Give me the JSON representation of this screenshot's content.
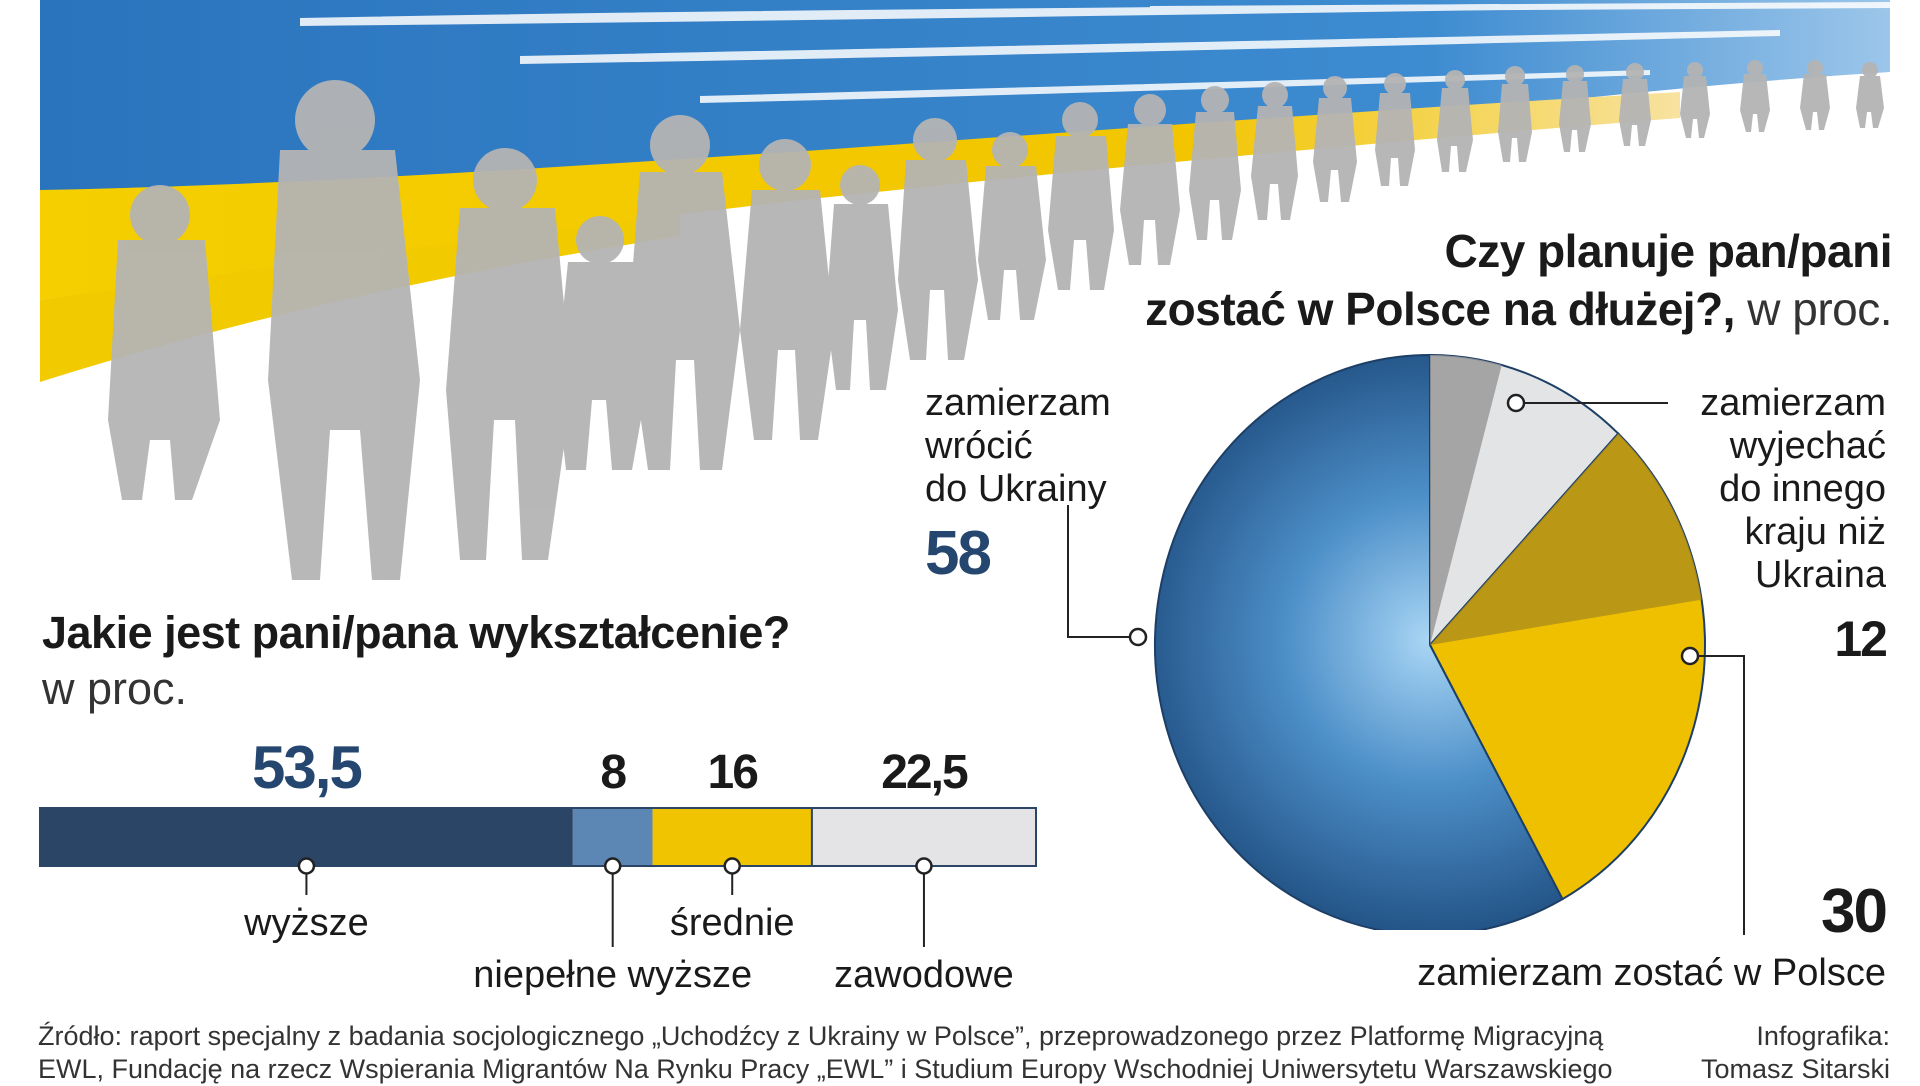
{
  "pie_question": {
    "title_line1": "Czy planuje pan/pani",
    "title_line2_bold": "zostać w Polsce na dłużej?,",
    "title_line2_unit": " w proc."
  },
  "bar_question": {
    "title": "Jakie jest pani/pana wykształcenie?",
    "unit": "w proc."
  },
  "chart_data": [
    {
      "type": "pie",
      "slices": [
        {
          "label": "zamierzam wrócić do Ukrainy",
          "label_lines": [
            "zamierzam",
            "wrócić",
            "do Ukrainy"
          ],
          "value": 58,
          "value_text": "58",
          "color": "#2b5f93"
        },
        {
          "label": "zamierzam wyjechać do innego kraju niż Ukraina",
          "label_lines": [
            "zamierzam",
            "wyjechać",
            "do innego",
            "kraju niż",
            "Ukraina"
          ],
          "value": 12,
          "value_text": "12",
          "color": "#e3e4e5"
        },
        {
          "label": "zamierzam zostać w Polsce",
          "label_lines": [
            "zamierzam zostać w Polsce"
          ],
          "value": 30,
          "value_text": "30",
          "color": "#eec000"
        }
      ]
    },
    {
      "type": "bar",
      "orientation": "stacked-horizontal",
      "categories": [
        "wyższe",
        "niepełne wyższe",
        "średnie",
        "zawodowe"
      ],
      "values": [
        53.5,
        8,
        16,
        22.5
      ],
      "value_texts": [
        "53,5",
        "8",
        "16",
        "22,5"
      ],
      "colors": [
        "#2b4566",
        "#5c86b4",
        "#f0c400",
        "#e4e4e6"
      ]
    }
  ],
  "colors": {
    "ukraine_blue": "#2d78c0",
    "ukraine_yellow": "#f2ca00",
    "silhouette_gray": "#b5b5b5",
    "accent_navy": "#24466f"
  },
  "footer": {
    "source_line1": "Źródło: raport specjalny z badania socjologicznego „Uchodźcy z Ukrainy w Polsce”, przeprowadzonego przez Platformę Migracyjną",
    "source_line2": "EWL, Fundację na rzecz Wspierania Migrantów Na Rynku Pracy „EWL” i Studium Europy Wschodniej Uniwersytetu Warszawskiego",
    "credit_line1": "Infografika:",
    "credit_line2": "Tomasz Sitarski"
  }
}
